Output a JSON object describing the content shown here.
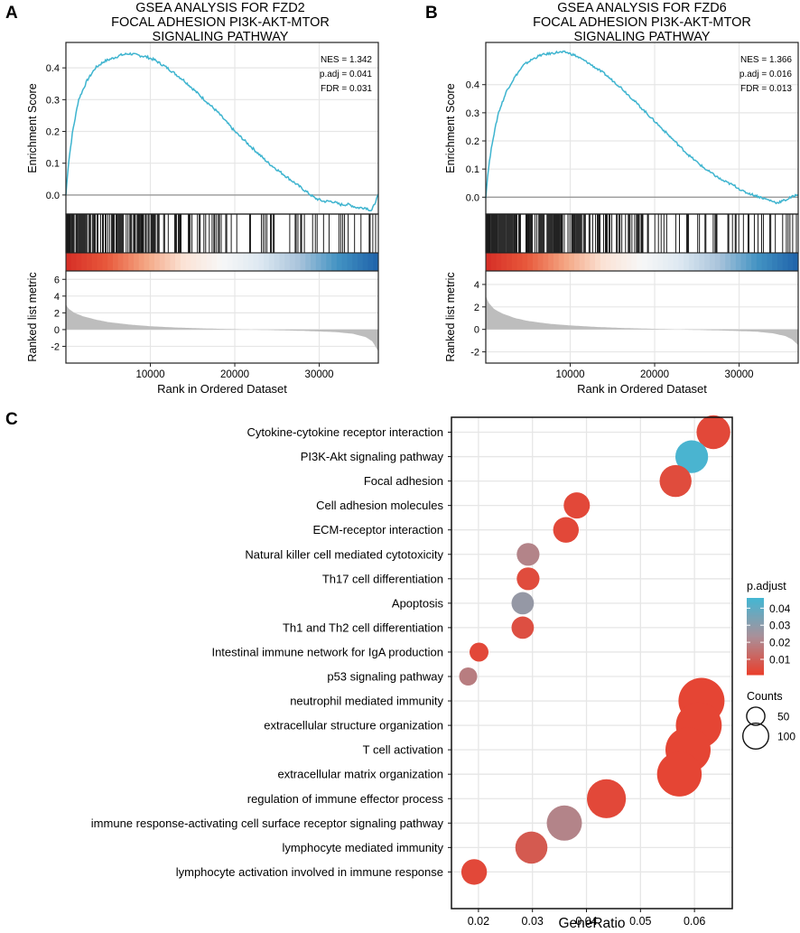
{
  "figure": {
    "panels": [
      {
        "letter": "A",
        "title_lines": [
          "GSEA ANALYSIS FOR FZD2",
          "FOCAL ADHESION PI3K-AKT-MTOR",
          "SIGNALING PATHWAY"
        ],
        "stats": [
          "NES = 1.342",
          "p.adj = 0.041",
          "FDR = 0.031"
        ],
        "ylabel_top": "Enrichment Score",
        "ylabel_bottom": "Ranked list metric",
        "xlabel": "Rank in Ordered Dataset"
      },
      {
        "letter": "B",
        "title_lines": [
          "GSEA ANALYSIS FOR FZD6",
          "FOCAL ADHESION PI3K-AKT-MTOR",
          "SIGNALING PATHWAY"
        ],
        "stats": [
          "NES = 1.366",
          "p.adj = 0.016",
          "FDR = 0.013"
        ],
        "ylabel_top": "Enrichment Score",
        "ylabel_bottom": "Ranked list metric",
        "xlabel": "Rank in Ordered Dataset"
      }
    ],
    "panel_c_letter": "C"
  },
  "colors": {
    "curve": "#3eb4cf",
    "hit": "#000000",
    "rank_fill": "#bdbdbd",
    "grid": "#e6e6e6",
    "zero_line": "#9a9a9a",
    "padj_low": "#e8412f",
    "padj_mid": "#a9909a",
    "padj_high": "#46b6d2"
  },
  "chart_data": [
    {
      "type": "line",
      "panel": "A",
      "subplot": "enrichment score",
      "xlim": [
        0,
        37000
      ],
      "ylim": [
        -0.06,
        0.48
      ],
      "yticks": [
        0.0,
        0.1,
        0.2,
        0.3,
        0.4
      ],
      "x": [
        0,
        300,
        800,
        1500,
        2500,
        3500,
        4500,
        5500,
        6500,
        7500,
        8500,
        9500,
        10500,
        12000,
        14000,
        16000,
        18000,
        20000,
        22000,
        24000,
        26000,
        28000,
        29500,
        30500,
        31500,
        32500,
        33500,
        34500,
        35500,
        36200,
        37000
      ],
      "y": [
        0.0,
        0.1,
        0.2,
        0.3,
        0.36,
        0.4,
        0.42,
        0.43,
        0.44,
        0.445,
        0.44,
        0.435,
        0.425,
        0.4,
        0.36,
        0.31,
        0.26,
        0.2,
        0.15,
        0.1,
        0.06,
        0.02,
        -0.01,
        -0.02,
        -0.02,
        -0.03,
        -0.03,
        -0.04,
        -0.04,
        -0.05,
        0.0
      ],
      "stats": {
        "NES": 1.342,
        "p.adj": 0.041,
        "FDR": 0.031
      }
    },
    {
      "type": "line",
      "panel": "A",
      "subplot": "ranked list metric",
      "xlim": [
        0,
        37000
      ],
      "ylim": [
        -4,
        7
      ],
      "yticks": [
        -2,
        0,
        2,
        4,
        6
      ],
      "x": [
        0,
        300,
        1000,
        2000,
        3500,
        5000,
        7500,
        10000,
        13000,
        16000,
        20000,
        24000,
        28000,
        32000,
        34000,
        35500,
        36300,
        37000
      ],
      "y": [
        3.0,
        2.5,
        2.0,
        1.6,
        1.2,
        0.9,
        0.6,
        0.4,
        0.25,
        0.15,
        0.05,
        -0.05,
        -0.15,
        -0.3,
        -0.5,
        -0.9,
        -1.4,
        -2.6
      ],
      "xticks": [
        10000,
        20000,
        30000
      ]
    },
    {
      "type": "line",
      "panel": "B",
      "subplot": "enrichment score",
      "xlim": [
        0,
        37000
      ],
      "ylim": [
        -0.06,
        0.55
      ],
      "yticks": [
        0.0,
        0.1,
        0.2,
        0.3,
        0.4
      ],
      "x": [
        0,
        300,
        800,
        1500,
        2500,
        3500,
        4500,
        5500,
        6500,
        7500,
        8500,
        9500,
        10500,
        12000,
        14000,
        16000,
        18000,
        20000,
        22000,
        24000,
        26000,
        28000,
        29500,
        30500,
        31500,
        32500,
        33500,
        34500,
        35500,
        36200,
        37000
      ],
      "y": [
        0.0,
        0.1,
        0.2,
        0.3,
        0.38,
        0.43,
        0.47,
        0.49,
        0.505,
        0.51,
        0.515,
        0.515,
        0.505,
        0.48,
        0.44,
        0.39,
        0.33,
        0.27,
        0.21,
        0.15,
        0.1,
        0.06,
        0.04,
        0.02,
        0.01,
        0.0,
        -0.01,
        -0.02,
        -0.01,
        0.0,
        0.01
      ],
      "stats": {
        "NES": 1.366,
        "p.adj": 0.016,
        "FDR": 0.013
      }
    },
    {
      "type": "line",
      "panel": "B",
      "subplot": "ranked list metric",
      "xlim": [
        0,
        37000
      ],
      "ylim": [
        -3,
        5.2
      ],
      "yticks": [
        -2,
        0,
        2,
        4
      ],
      "x": [
        0,
        300,
        1000,
        2000,
        3500,
        5000,
        7500,
        10000,
        13000,
        16000,
        20000,
        24000,
        28000,
        32000,
        34000,
        35500,
        36300,
        37000
      ],
      "y": [
        3.0,
        2.4,
        1.8,
        1.4,
        1.0,
        0.75,
        0.5,
        0.35,
        0.22,
        0.13,
        0.05,
        -0.03,
        -0.1,
        -0.2,
        -0.35,
        -0.6,
        -0.9,
        -1.4
      ],
      "xticks": [
        10000,
        20000,
        30000
      ]
    },
    {
      "type": "scatter",
      "panel": "C",
      "subtype": "dotplot",
      "xlabel": "GeneRatio",
      "xlim": [
        0.015,
        0.067
      ],
      "xticks": [
        0.02,
        0.03,
        0.04,
        0.05,
        0.06
      ],
      "xtick_labels": [
        "0.02",
        "0.03",
        "0.04",
        "0.05",
        "0.06"
      ],
      "terms": [
        "Cytokine-cytokine receptor interaction",
        "PI3K-Akt signaling pathway",
        "Focal adhesion",
        "Cell adhesion molecules",
        "ECM-receptor interaction",
        "Natural killer cell mediated cytotoxicity",
        "Th17 cell differentiation",
        "Apoptosis",
        "Th1 and Th2 cell differentiation",
        "Intestinal immune network for IgA production",
        "p53 signaling pathway",
        "neutrophil mediated immunity",
        "extracellular structure organization",
        "T cell activation",
        "extracellular matrix organization",
        "regulation of immune effector process",
        "immune response-activating cell surface receptor signaling pathway",
        "lymphocyte mediated immunity",
        "lymphocyte activation involved in immune response"
      ],
      "gene_ratio": [
        0.0635,
        0.0595,
        0.0565,
        0.0382,
        0.0362,
        0.0292,
        0.0292,
        0.0282,
        0.0282,
        0.0201,
        0.0181,
        0.0613,
        0.0608,
        0.0588,
        0.0572,
        0.0437,
        0.0359,
        0.0298,
        0.0192
      ],
      "p_adjust": [
        0.003,
        0.045,
        0.004,
        0.003,
        0.003,
        0.02,
        0.004,
        0.028,
        0.005,
        0.003,
        0.018,
        0.002,
        0.002,
        0.002,
        0.002,
        0.003,
        0.02,
        0.008,
        0.003
      ],
      "counts": [
        66,
        62,
        59,
        40,
        38,
        30,
        30,
        29,
        29,
        21,
        19,
        123,
        122,
        118,
        115,
        88,
        72,
        60,
        38
      ],
      "legend_padj": {
        "title": "p.adjust",
        "ticks": [
          0.04,
          0.03,
          0.02,
          0.01
        ],
        "tick_labels": [
          "0.04",
          "0.03",
          "0.02",
          "0.01"
        ],
        "range": [
          0.001,
          0.046
        ]
      },
      "legend_counts": {
        "title": "Counts",
        "values": [
          50,
          100
        ],
        "labels": [
          "50",
          "100"
        ]
      }
    }
  ]
}
